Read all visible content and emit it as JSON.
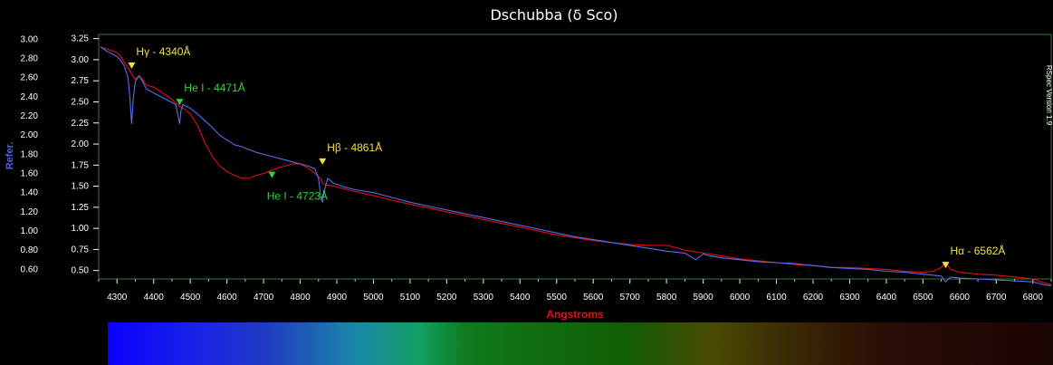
{
  "chart_data": {
    "type": "line",
    "title": "Dschubba (δ Sco)",
    "xlabel": "Angstroms",
    "ylabel": "Refer.",
    "watermark": "RSpec Version 1.9",
    "xlim": [
      4250,
      6850
    ],
    "ylim_left": [
      0.5,
      3.05
    ],
    "ylim_right": [
      0.4,
      3.3
    ],
    "x_ticks": [
      "4300",
      "4400",
      "4500",
      "4600",
      "4700",
      "4800",
      "4900",
      "5000",
      "5100",
      "5200",
      "5300",
      "5400",
      "5500",
      "5600",
      "5700",
      "5800",
      "5900",
      "6000",
      "6100",
      "6200",
      "6300",
      "6400",
      "6500",
      "6600",
      "6700",
      "6800"
    ],
    "y_left_ticks": [
      "3.00",
      "2.80",
      "2.60",
      "2.40",
      "2.20",
      "2.00",
      "1.80",
      "1.60",
      "1.40",
      "1.20",
      "1.00",
      "0.80",
      "0.60"
    ],
    "y_right_ticks": [
      "3.25",
      "3.00",
      "2.75",
      "2.50",
      "2.25",
      "2.00",
      "1.75",
      "1.50",
      "1.25",
      "1.00",
      "0.75",
      "0.50"
    ],
    "grid": false,
    "colors": {
      "red_series": "#e01010",
      "blue_series": "#5a6cf0",
      "frame": "#2f7a2f",
      "hydrogen_label": "#f0e040",
      "helium_label": "#3ad03a"
    },
    "series": [
      {
        "color": "#e01010",
        "x": [
          4255,
          4270,
          4285,
          4300,
          4310,
          4320,
          4330,
          4340,
          4350,
          4360,
          4370,
          4380,
          4400,
          4420,
          4440,
          4460,
          4471,
          4480,
          4500,
          4520,
          4540,
          4560,
          4580,
          4600,
          4620,
          4640,
          4660,
          4680,
          4700,
          4720,
          4740,
          4760,
          4780,
          4800,
          4820,
          4840,
          4855,
          4861,
          4870,
          4890,
          4920,
          4950,
          5000,
          5050,
          5100,
          5150,
          5200,
          5250,
          5300,
          5350,
          5400,
          5450,
          5500,
          5550,
          5600,
          5650,
          5700,
          5750,
          5800,
          5850,
          5900,
          5950,
          6000,
          6050,
          6100,
          6150,
          6200,
          6250,
          6300,
          6350,
          6400,
          6450,
          6500,
          6530,
          6550,
          6562,
          6575,
          6600,
          6650,
          6700,
          6750,
          6800,
          6830,
          6850
        ],
        "y": [
          2.92,
          2.9,
          2.88,
          2.86,
          2.82,
          2.76,
          2.7,
          2.64,
          2.58,
          2.62,
          2.58,
          2.52,
          2.5,
          2.45,
          2.4,
          2.34,
          2.3,
          2.28,
          2.22,
          2.1,
          1.92,
          1.78,
          1.68,
          1.62,
          1.58,
          1.55,
          1.55,
          1.58,
          1.6,
          1.63,
          1.66,
          1.68,
          1.7,
          1.7,
          1.66,
          1.6,
          1.55,
          1.5,
          1.48,
          1.47,
          1.44,
          1.41,
          1.37,
          1.32,
          1.28,
          1.24,
          1.2,
          1.16,
          1.12,
          1.08,
          1.04,
          1.0,
          0.96,
          0.93,
          0.9,
          0.88,
          0.86,
          0.85,
          0.85,
          0.8,
          0.77,
          0.74,
          0.71,
          0.69,
          0.67,
          0.65,
          0.64,
          0.62,
          0.62,
          0.61,
          0.6,
          0.58,
          0.57,
          0.58,
          0.62,
          0.67,
          0.6,
          0.57,
          0.55,
          0.54,
          0.52,
          0.5,
          0.46,
          0.44
        ]
      },
      {
        "color": "#5a6cf0",
        "x": [
          4255,
          4270,
          4285,
          4300,
          4310,
          4320,
          4330,
          4335,
          4340,
          4345,
          4350,
          4360,
          4370,
          4380,
          4400,
          4420,
          4440,
          4460,
          4471,
          4475,
          4480,
          4500,
          4520,
          4540,
          4560,
          4580,
          4600,
          4620,
          4640,
          4660,
          4680,
          4700,
          4720,
          4740,
          4760,
          4780,
          4800,
          4820,
          4840,
          4850,
          4856,
          4861,
          4866,
          4875,
          4890,
          4920,
          4950,
          5000,
          5050,
          5100,
          5150,
          5200,
          5250,
          5300,
          5350,
          5400,
          5450,
          5500,
          5550,
          5600,
          5650,
          5700,
          5750,
          5800,
          5850,
          5880,
          5900,
          5920,
          5950,
          6000,
          6050,
          6100,
          6150,
          6200,
          6250,
          6300,
          6350,
          6400,
          6450,
          6500,
          6550,
          6562,
          6575,
          6600,
          6650,
          6700,
          6750,
          6800,
          6830,
          6850
        ],
        "y": [
          2.92,
          2.88,
          2.85,
          2.82,
          2.78,
          2.72,
          2.6,
          2.4,
          2.12,
          2.4,
          2.56,
          2.62,
          2.56,
          2.48,
          2.44,
          2.4,
          2.36,
          2.32,
          2.12,
          2.26,
          2.32,
          2.28,
          2.22,
          2.15,
          2.08,
          2.0,
          1.95,
          1.9,
          1.88,
          1.85,
          1.82,
          1.8,
          1.78,
          1.76,
          1.74,
          1.72,
          1.7,
          1.68,
          1.65,
          1.55,
          1.36,
          1.3,
          1.42,
          1.55,
          1.5,
          1.46,
          1.43,
          1.4,
          1.35,
          1.3,
          1.26,
          1.22,
          1.18,
          1.14,
          1.1,
          1.06,
          1.02,
          0.98,
          0.94,
          0.91,
          0.88,
          0.85,
          0.82,
          0.79,
          0.77,
          0.7,
          0.76,
          0.74,
          0.72,
          0.7,
          0.68,
          0.67,
          0.66,
          0.64,
          0.62,
          0.61,
          0.6,
          0.58,
          0.57,
          0.55,
          0.53,
          0.47,
          0.52,
          0.51,
          0.5,
          0.49,
          0.48,
          0.47,
          0.44,
          0.43
        ]
      }
    ],
    "annotations": [
      {
        "label": "Hγ - 4340Å",
        "x": 4340,
        "y": 2.72,
        "color": "#f0e040",
        "text_pos": "above-right"
      },
      {
        "label": "He I - 4471Å",
        "x": 4471,
        "y": 2.34,
        "color": "#3ad03a",
        "text_pos": "above-right"
      },
      {
        "label": "Hβ - 4861Å",
        "x": 4861,
        "y": 1.72,
        "color": "#f0e040",
        "text_pos": "above-right"
      },
      {
        "label": "He I - 4723Å",
        "x": 4723,
        "y": 1.58,
        "color": "#3ad03a",
        "text_pos": "below"
      },
      {
        "label": "Hα - 6562Å",
        "x": 6562,
        "y": 0.64,
        "color": "#f0e040",
        "text_pos": "above-right"
      }
    ],
    "spectrum_stops": [
      {
        "offset": 0.0,
        "color": "#0a00ff"
      },
      {
        "offset": 0.1,
        "color": "#1a24e6"
      },
      {
        "offset": 0.17,
        "color": "#1f3dc0"
      },
      {
        "offset": 0.26,
        "color": "#1b86a8"
      },
      {
        "offset": 0.33,
        "color": "#11a064"
      },
      {
        "offset": 0.38,
        "color": "#0f7a1e"
      },
      {
        "offset": 0.55,
        "color": "#125c04"
      },
      {
        "offset": 0.64,
        "color": "#4a4a04"
      },
      {
        "offset": 0.72,
        "color": "#3a2a04"
      },
      {
        "offset": 0.82,
        "color": "#2a0e06"
      },
      {
        "offset": 1.0,
        "color": "#1a0404"
      }
    ]
  }
}
